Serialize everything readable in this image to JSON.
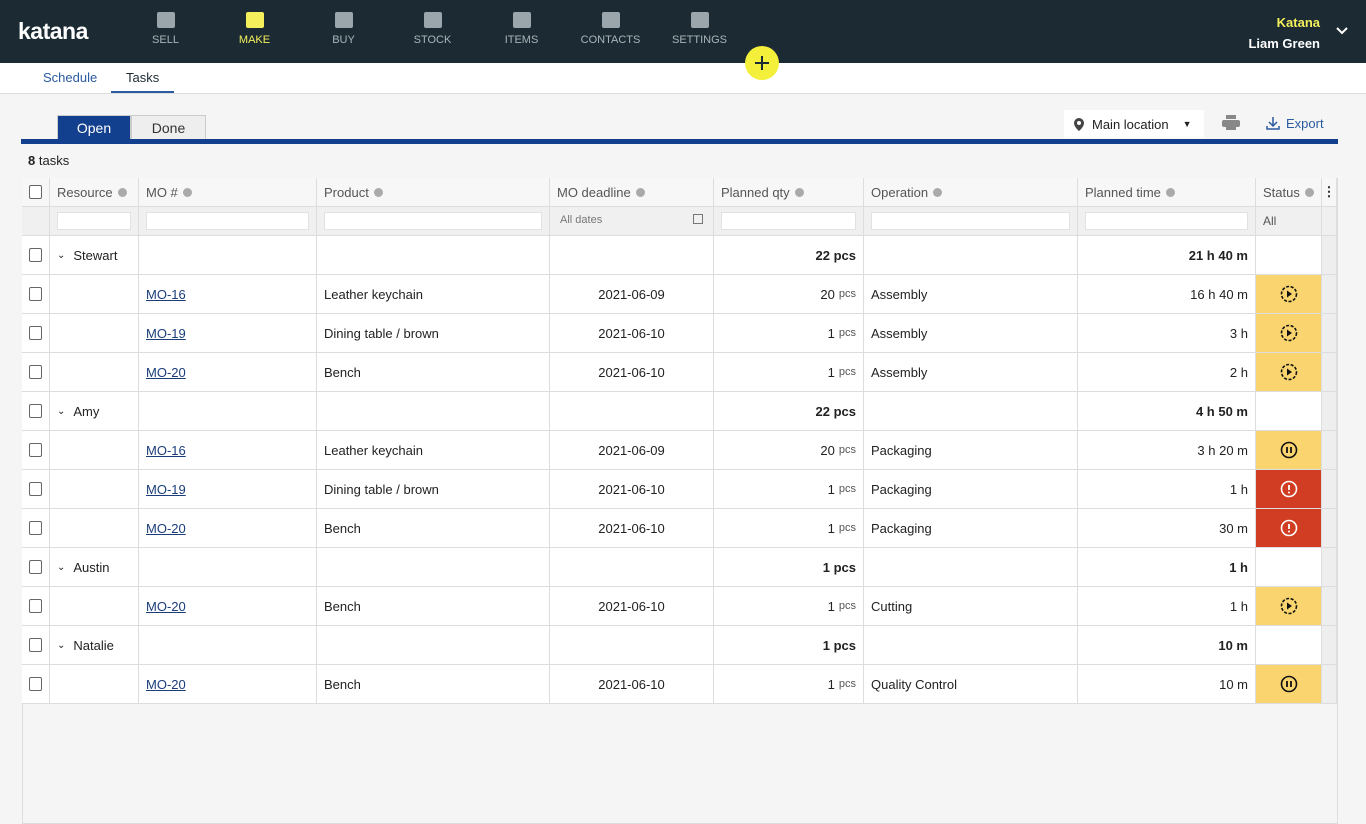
{
  "nav": {
    "logo": "katana",
    "items": [
      "SELL",
      "MAKE",
      "BUY",
      "STOCK",
      "ITEMS",
      "CONTACTS",
      "SETTINGS"
    ],
    "active": 1,
    "company": "Katana",
    "user": "Liam Green"
  },
  "subtabs": {
    "items": [
      "Schedule",
      "Tasks"
    ],
    "active": 1
  },
  "toolbar": {
    "toggle": [
      "Open",
      "Done"
    ],
    "location": "Main location",
    "export": "Export"
  },
  "count": {
    "number": "8",
    "label": "tasks"
  },
  "table": {
    "headers": [
      "Resource",
      "MO #",
      "Product",
      "MO deadline",
      "Planned qty",
      "Operation",
      "Planned time",
      "Status"
    ],
    "filters": {
      "deadline": "All dates",
      "status": "All"
    },
    "groups": [
      {
        "resource": "Stewart",
        "qty": "22 pcs",
        "time": "21 h 40 m",
        "tasks": [
          {
            "mo": "MO-16",
            "product": "Leather keychain",
            "deadline": "2021-06-09",
            "qty": "20",
            "unit": "pcs",
            "operation": "Assembly",
            "time": "16 h 40 m",
            "status": {
              "icon": "play",
              "color": "#fad56f"
            }
          },
          {
            "mo": "MO-19",
            "product": "Dining table / brown",
            "deadline": "2021-06-10",
            "qty": "1",
            "unit": "pcs",
            "operation": "Assembly",
            "time": "3 h",
            "status": {
              "icon": "play",
              "color": "#fad56f"
            }
          },
          {
            "mo": "MO-20",
            "product": "Bench",
            "deadline": "2021-06-10",
            "qty": "1",
            "unit": "pcs",
            "operation": "Assembly",
            "time": "2 h",
            "status": {
              "icon": "play",
              "color": "#fad56f"
            }
          }
        ]
      },
      {
        "resource": "Amy",
        "qty": "22 pcs",
        "time": "4 h 50 m",
        "tasks": [
          {
            "mo": "MO-16",
            "product": "Leather keychain",
            "deadline": "2021-06-09",
            "qty": "20",
            "unit": "pcs",
            "operation": "Packaging",
            "time": "3 h 20 m",
            "status": {
              "icon": "pause",
              "color": "#fad56f"
            }
          },
          {
            "mo": "MO-19",
            "product": "Dining table / brown",
            "deadline": "2021-06-10",
            "qty": "1",
            "unit": "pcs",
            "operation": "Packaging",
            "time": "1 h",
            "status": {
              "icon": "alert",
              "color": "#d13d22"
            }
          },
          {
            "mo": "MO-20",
            "product": "Bench",
            "deadline": "2021-06-10",
            "qty": "1",
            "unit": "pcs",
            "operation": "Packaging",
            "time": "30 m",
            "status": {
              "icon": "alert",
              "color": "#d13d22"
            }
          }
        ]
      },
      {
        "resource": "Austin",
        "qty": "1 pcs",
        "time": "1 h",
        "tasks": [
          {
            "mo": "MO-20",
            "product": "Bench",
            "deadline": "2021-06-10",
            "qty": "1",
            "unit": "pcs",
            "operation": "Cutting",
            "time": "1 h",
            "status": {
              "icon": "play",
              "color": "#fad56f"
            }
          }
        ]
      },
      {
        "resource": "Natalie",
        "qty": "1 pcs",
        "time": "10 m",
        "tasks": [
          {
            "mo": "MO-20",
            "product": "Bench",
            "deadline": "2021-06-10",
            "qty": "1",
            "unit": "pcs",
            "operation": "Quality Control",
            "time": "10 m",
            "status": {
              "icon": "pause",
              "color": "#fad56f"
            }
          }
        ]
      }
    ]
  }
}
